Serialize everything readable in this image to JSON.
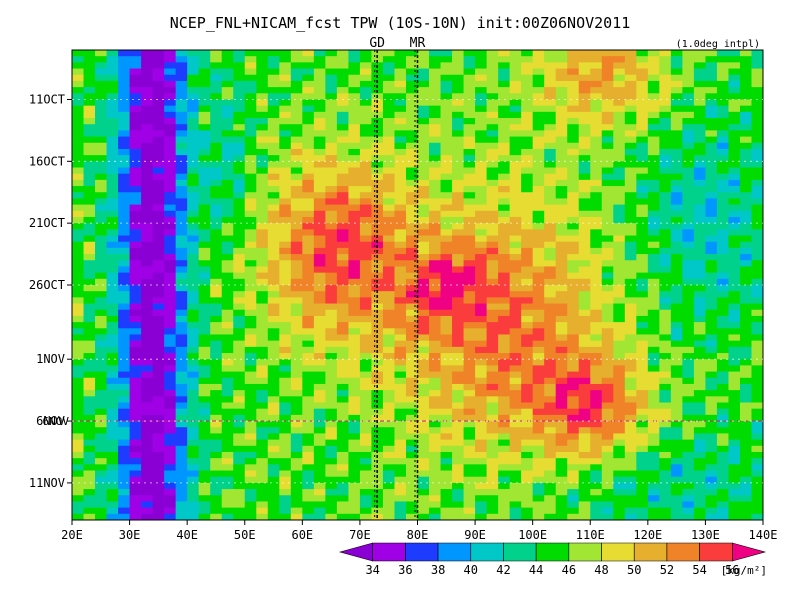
{
  "chart_data": {
    "type": "heatmap",
    "title": "NCEP_FNL+NICAM_fcst TPW (10S-10N) init:00Z06NOV2011",
    "note": "(1.0deg intpl)",
    "x_ticks": [
      "20E",
      "30E",
      "40E",
      "50E",
      "60E",
      "70E",
      "80E",
      "90E",
      "100E",
      "110E",
      "120E",
      "130E",
      "140E"
    ],
    "x_values": [
      20,
      30,
      40,
      50,
      60,
      70,
      80,
      90,
      100,
      110,
      120,
      130,
      140
    ],
    "xlim": [
      20,
      140
    ],
    "y_ticks": [
      "11OCT",
      "16OCT",
      "21OCT",
      "26OCT",
      "1NOV",
      "6NOV",
      "11NOV"
    ],
    "y_values": [
      10,
      15,
      20,
      25,
      31,
      36,
      41
    ],
    "ylim": [
      6,
      44
    ],
    "y_direction": "time increases downward",
    "init_day": 36,
    "init_label": "6NOV",
    "markers": [
      {
        "label": "GD",
        "lon": 73,
        "color": "#ff2020"
      },
      {
        "label": "MR",
        "lon": 80,
        "color": "#ff2020"
      }
    ],
    "colorbar": {
      "levels": [
        34,
        36,
        38,
        40,
        42,
        44,
        46,
        48,
        50,
        52,
        54,
        56
      ],
      "colors": [
        "#8a00d4",
        "#a000e6",
        "#1e3cff",
        "#0096ff",
        "#00c8c8",
        "#00d28c",
        "#00dc00",
        "#a0e632",
        "#e6dc32",
        "#e6af2d",
        "#f08228",
        "#fa3c3c",
        "#f00082"
      ],
      "units": "[kg/m²]"
    }
  }
}
